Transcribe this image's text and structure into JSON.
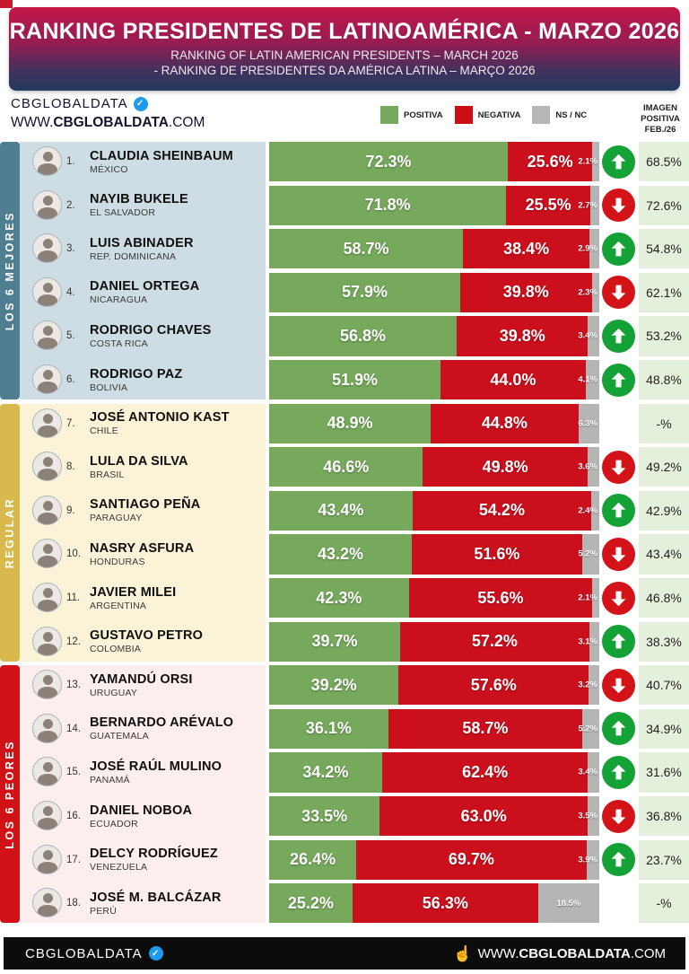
{
  "header": {
    "title": "RANKING PRESIDENTES DE LATINOAMÉRICA - MARZO 2026",
    "subtitle_en": "RANKING OF LATIN AMERICAN PRESIDENTS – MARCH 2026",
    "subtitle_pt": "- RANKING DE PRESIDENTES DA AMÉRICA LATINA – MARÇO 2026"
  },
  "branding": {
    "logo_text": "CBGLOBALDATA",
    "check_glyph": "✓",
    "url_prefix": "WWW.",
    "url_bold": "CBGLOBALDATA",
    "url_suffix": ".COM"
  },
  "legend": {
    "items": [
      {
        "label": "POSITIVA",
        "color": "#76a95c"
      },
      {
        "label": "NEGATIVA",
        "color": "#cc0c14"
      },
      {
        "label": "NS / NC",
        "color": "#b7b7b7"
      }
    ]
  },
  "right_header": {
    "line1": "IMAGEN",
    "line2": "POSITIVA",
    "line3": "FEB./26"
  },
  "colors": {
    "green": "#76a95c",
    "red": "#cc0f1d",
    "gray": "#b5b5b5",
    "arrow_up": "#14a136",
    "arrow_down": "#d41318",
    "prev_cell_bg": "#e4efdc"
  },
  "sections": [
    {
      "label": "LOS 6 MEJORES",
      "strip_color": "#4e7e90",
      "row_bg": "#cddde3",
      "rows": [
        {
          "rank": "1.",
          "name": "CLAUDIA SHEINBAUM",
          "country": "MÉXICO",
          "positive": 72.3,
          "negative": 25.6,
          "ns_nc": 2.1,
          "positive_label": "72.3%",
          "negative_label": "25.6%",
          "ns_label": "2.1%",
          "trend": "up",
          "previous": "68.5%"
        },
        {
          "rank": "2.",
          "name": "NAYIB BUKELE",
          "country": "EL SALVADOR",
          "positive": 71.8,
          "negative": 25.5,
          "ns_nc": 2.7,
          "positive_label": "71.8%",
          "negative_label": "25.5%",
          "ns_label": "2.7%",
          "trend": "down",
          "previous": "72.6%"
        },
        {
          "rank": "3.",
          "name": "LUIS ABINADER",
          "country": "REP. DOMINICANA",
          "positive": 58.7,
          "negative": 38.4,
          "ns_nc": 2.9,
          "positive_label": "58.7%",
          "negative_label": "38.4%",
          "ns_label": "2.9%",
          "trend": "up",
          "previous": "54.8%"
        },
        {
          "rank": "4.",
          "name": "DANIEL ORTEGA",
          "country": "NICARAGUA",
          "positive": 57.9,
          "negative": 39.8,
          "ns_nc": 2.3,
          "positive_label": "57.9%",
          "negative_label": "39.8%",
          "ns_label": "2.3%",
          "trend": "down",
          "previous": "62.1%"
        },
        {
          "rank": "5.",
          "name": "RODRIGO CHAVES",
          "country": "COSTA RICA",
          "positive": 56.8,
          "negative": 39.8,
          "ns_nc": 3.4,
          "positive_label": "56.8%",
          "negative_label": "39.8%",
          "ns_label": "3.4%",
          "trend": "up",
          "previous": "53.2%"
        },
        {
          "rank": "6.",
          "name": "RODRIGO PAZ",
          "country": "BOLIVIA",
          "positive": 51.9,
          "negative": 44.0,
          "ns_nc": 4.1,
          "positive_label": "51.9%",
          "negative_label": "44.0%",
          "ns_label": "4.1%",
          "trend": "up",
          "previous": "48.8%"
        }
      ]
    },
    {
      "label": "REGULAR",
      "strip_color": "#d9b94e",
      "row_bg": "#faf3d7",
      "rows": [
        {
          "rank": "7.",
          "name": "JOSÉ ANTONIO KAST",
          "country": "CHILE",
          "positive": 48.9,
          "negative": 44.8,
          "ns_nc": 6.3,
          "positive_label": "48.9%",
          "negative_label": "44.8%",
          "ns_label": "6.3%",
          "trend": "none",
          "previous": "-%"
        },
        {
          "rank": "8.",
          "name": "LULA DA SILVA",
          "country": "BRASIL",
          "positive": 46.6,
          "negative": 49.8,
          "ns_nc": 3.6,
          "positive_label": "46.6%",
          "negative_label": "49.8%",
          "ns_label": "3.6%",
          "trend": "down",
          "previous": "49.2%"
        },
        {
          "rank": "9.",
          "name": "SANTIAGO PEÑA",
          "country": "PARAGUAY",
          "positive": 43.4,
          "negative": 54.2,
          "ns_nc": 2.4,
          "positive_label": "43.4%",
          "negative_label": "54.2%",
          "ns_label": "2.4%",
          "trend": "up",
          "previous": "42.9%"
        },
        {
          "rank": "10.",
          "name": "NASRY ASFURA",
          "country": "HONDURAS",
          "positive": 43.2,
          "negative": 51.6,
          "ns_nc": 5.2,
          "positive_label": "43.2%",
          "negative_label": "51.6%",
          "ns_label": "5.2%",
          "trend": "down",
          "previous": "43.4%"
        },
        {
          "rank": "11.",
          "name": "JAVIER MILEI",
          "country": "ARGENTINA",
          "positive": 42.3,
          "negative": 55.6,
          "ns_nc": 2.1,
          "positive_label": "42.3%",
          "negative_label": "55.6%",
          "ns_label": "2.1%",
          "trend": "down",
          "previous": "46.8%"
        },
        {
          "rank": "12.",
          "name": "GUSTAVO PETRO",
          "country": "COLOMBIA",
          "positive": 39.7,
          "negative": 57.2,
          "ns_nc": 3.1,
          "positive_label": "39.7%",
          "negative_label": "57.2%",
          "ns_label": "3.1%",
          "trend": "up",
          "previous": "38.3%"
        }
      ]
    },
    {
      "label": "LOS 6 PEORES",
      "strip_color": "#d01217",
      "row_bg": "#fbeeec",
      "rows": [
        {
          "rank": "13.",
          "name": "YAMANDÚ ORSI",
          "country": "URUGUAY",
          "positive": 39.2,
          "negative": 57.6,
          "ns_nc": 3.2,
          "positive_label": "39.2%",
          "negative_label": "57.6%",
          "ns_label": "3.2%",
          "trend": "down",
          "previous": "40.7%"
        },
        {
          "rank": "14.",
          "name": "BERNARDO ARÉVALO",
          "country": "GUATEMALA",
          "positive": 36.1,
          "negative": 58.7,
          "ns_nc": 5.2,
          "positive_label": "36.1%",
          "negative_label": "58.7%",
          "ns_label": "5.2%",
          "trend": "up",
          "previous": "34.9%"
        },
        {
          "rank": "15.",
          "name": "JOSÉ RAÚL MULINO",
          "country": "PANAMÁ",
          "positive": 34.2,
          "negative": 62.4,
          "ns_nc": 3.4,
          "positive_label": "34.2%",
          "negative_label": "62.4%",
          "ns_label": "3.4%",
          "trend": "up",
          "previous": "31.6%"
        },
        {
          "rank": "16.",
          "name": "DANIEL NOBOA",
          "country": "ECUADOR",
          "positive": 33.5,
          "negative": 63.0,
          "ns_nc": 3.5,
          "positive_label": "33.5%",
          "negative_label": "63.0%",
          "ns_label": "3.5%",
          "trend": "down",
          "previous": "36.8%"
        },
        {
          "rank": "17.",
          "name": "DELCY RODRÍGUEZ",
          "country": "VENEZUELA",
          "positive": 26.4,
          "negative": 69.7,
          "ns_nc": 3.9,
          "positive_label": "26.4%",
          "negative_label": "69.7%",
          "ns_label": "3.9%",
          "trend": "up",
          "previous": "23.7%"
        },
        {
          "rank": "18.",
          "name": "JOSÉ M. BALCÁZAR",
          "country": "PERÚ",
          "positive": 25.2,
          "negative": 56.3,
          "ns_nc": 18.5,
          "positive_label": "25.2%",
          "negative_label": "56.3%",
          "ns_label": "18.5%",
          "trend": "none",
          "previous": "-%"
        }
      ]
    }
  ],
  "footer": {
    "logo_text": "CBGLOBALDATA",
    "check_glyph": "✓",
    "hand_glyph": "☝",
    "url_prefix": "WWW.",
    "url_bold": "CBGLOBALDATA",
    "url_suffix": ".COM"
  },
  "chart_data": {
    "type": "bar",
    "subtype": "stacked-horizontal",
    "title": "RANKING PRESIDENTES DE LATINOAMÉRICA - MARZO 2026",
    "categories": [
      "CLAUDIA SHEINBAUM (MÉXICO)",
      "NAYIB BUKELE (EL SALVADOR)",
      "LUIS ABINADER (REP. DOMINICANA)",
      "DANIEL ORTEGA (NICARAGUA)",
      "RODRIGO CHAVES (COSTA RICA)",
      "RODRIGO PAZ (BOLIVIA)",
      "JOSÉ ANTONIO KAST (CHILE)",
      "LULA DA SILVA (BRASIL)",
      "SANTIAGO PEÑA (PARAGUAY)",
      "NASRY ASFURA (HONDURAS)",
      "JAVIER MILEI (ARGENTINA)",
      "GUSTAVO PETRO (COLOMBIA)",
      "YAMANDÚ ORSI (URUGUAY)",
      "BERNARDO ARÉVALO (GUATEMALA)",
      "JOSÉ RAÚL MULINO (PANAMÁ)",
      "DANIEL NOBOA (ECUADOR)",
      "DELCY RODRÍGUEZ (VENEZUELA)",
      "JOSÉ M. BALCÁZAR (PERÚ)"
    ],
    "series": [
      {
        "name": "POSITIVA",
        "values": [
          72.3,
          71.8,
          58.7,
          57.9,
          56.8,
          51.9,
          48.9,
          46.6,
          43.4,
          43.2,
          42.3,
          39.7,
          39.2,
          36.1,
          34.2,
          33.5,
          26.4,
          25.2
        ]
      },
      {
        "name": "NEGATIVA",
        "values": [
          25.6,
          25.5,
          38.4,
          39.8,
          39.8,
          44.0,
          44.8,
          49.8,
          54.2,
          51.6,
          55.6,
          57.2,
          57.6,
          58.7,
          62.4,
          63.0,
          69.7,
          56.3
        ]
      },
      {
        "name": "NS / NC",
        "values": [
          2.1,
          2.7,
          2.9,
          2.3,
          3.4,
          4.1,
          6.3,
          3.6,
          2.4,
          5.2,
          2.1,
          3.1,
          3.2,
          5.2,
          3.4,
          3.5,
          3.9,
          18.5
        ]
      }
    ],
    "trend_vs_previous": [
      "up",
      "down",
      "up",
      "down",
      "up",
      "up",
      "none",
      "down",
      "up",
      "down",
      "down",
      "up",
      "down",
      "up",
      "up",
      "down",
      "up",
      "none"
    ],
    "imagen_positiva_feb26": [
      "68.5%",
      "72.6%",
      "54.8%",
      "62.1%",
      "53.2%",
      "48.8%",
      "-%",
      "49.2%",
      "42.9%",
      "43.4%",
      "46.8%",
      "38.3%",
      "40.7%",
      "34.9%",
      "31.6%",
      "36.8%",
      "23.7%",
      "-%"
    ],
    "groups": [
      "LOS 6 MEJORES",
      "REGULAR",
      "LOS 6 PEORES"
    ],
    "xlim": [
      0,
      100
    ],
    "legend_position": "top",
    "grid": false
  }
}
